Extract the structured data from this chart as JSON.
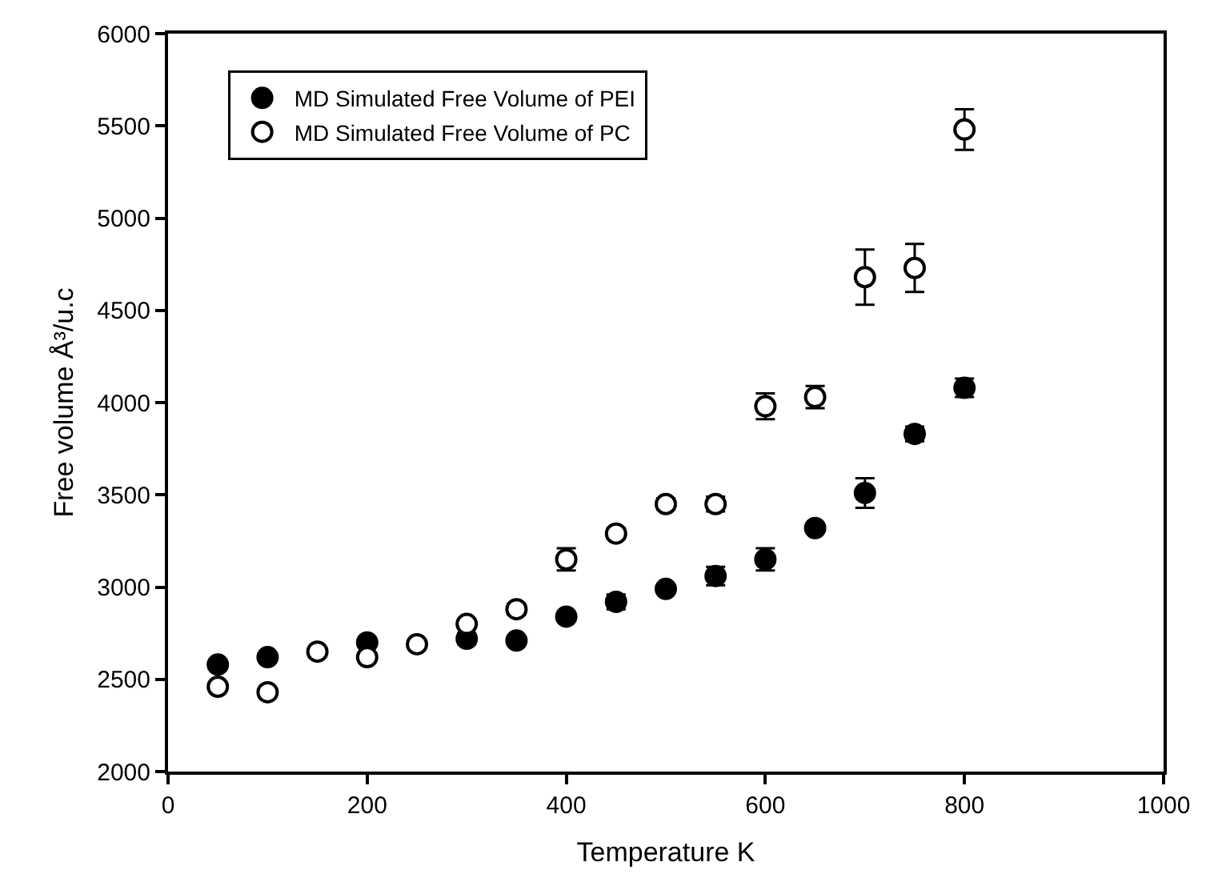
{
  "chart_data": {
    "type": "scatter",
    "xlabel": "Temperature K",
    "ylabel": "Free volume Å³/u.c",
    "x": [
      50,
      100,
      150,
      200,
      250,
      300,
      350,
      400,
      450,
      500,
      550,
      600,
      650,
      700,
      750,
      800
    ],
    "series": [
      {
        "name": "MD Simulated Free Volume of PEI",
        "color": "#000000",
        "values": [
          2580,
          2620,
          null,
          2700,
          null,
          2720,
          2710,
          2840,
          2920,
          2990,
          3060,
          3150,
          3320,
          3510,
          3830,
          4080
        ],
        "errors": [
          null,
          null,
          null,
          null,
          null,
          30,
          null,
          null,
          40,
          null,
          50,
          60,
          null,
          80,
          40,
          50
        ]
      },
      {
        "name": "MD Simulated Free Volume of PC",
        "color": "#ffffff",
        "values": [
          2460,
          2430,
          2650,
          2620,
          2690,
          2800,
          2880,
          3150,
          3290,
          3450,
          3450,
          3980,
          4030,
          4680,
          4730,
          5480
        ],
        "errors": [
          null,
          null,
          null,
          null,
          null,
          null,
          30,
          60,
          30,
          30,
          40,
          70,
          60,
          150,
          130,
          110
        ]
      }
    ],
    "xlim": [
      0,
      1000
    ],
    "xticks": [
      0,
      200,
      400,
      600,
      800,
      1000
    ],
    "ylim": [
      2000,
      6000
    ],
    "yticks": [
      2000,
      2500,
      3000,
      3500,
      4000,
      4500,
      5000,
      5500,
      6000
    ],
    "legend": "top left",
    "marker": "circle"
  }
}
